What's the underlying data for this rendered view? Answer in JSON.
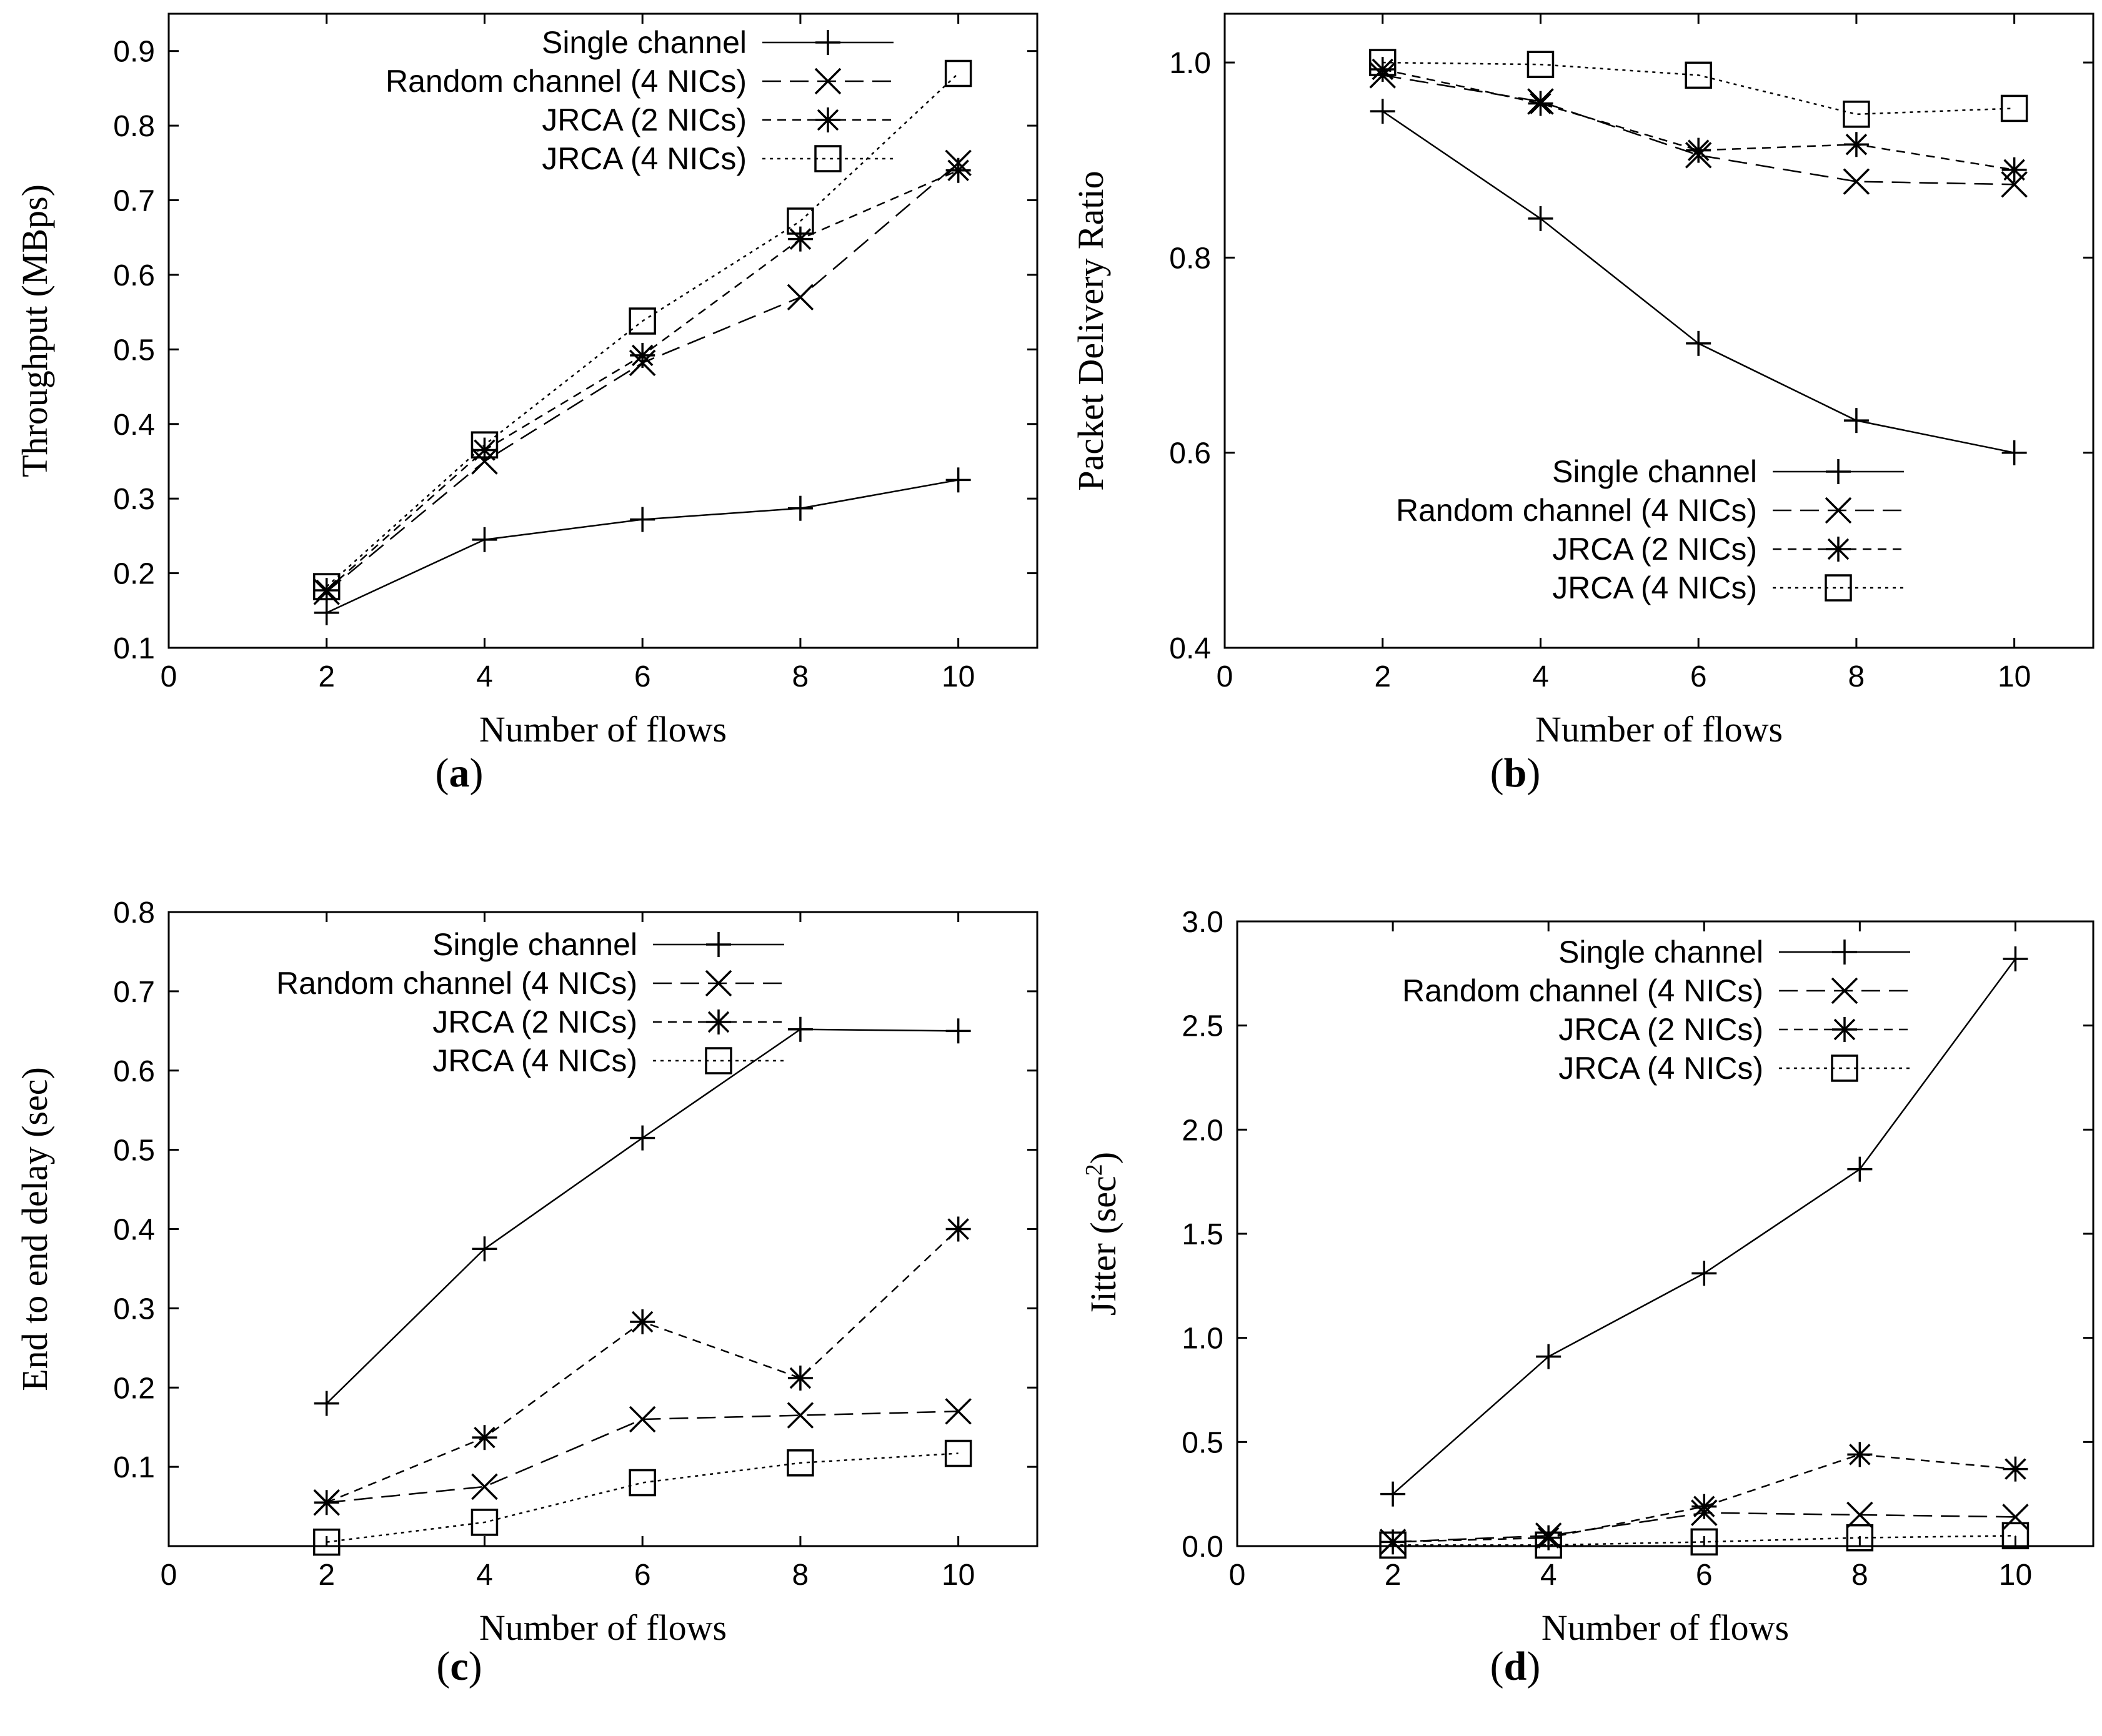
{
  "chart_data": [
    {
      "id": "a",
      "type": "line",
      "caption_letter": "a",
      "xlabel": "Number of flows",
      "ylabel": "Throughput (MBps)",
      "ylabel_sup": "",
      "ylabel_tail": "",
      "xlim": [
        0,
        11
      ],
      "ylim": [
        0.1,
        0.95
      ],
      "xticks": [
        0,
        2,
        4,
        6,
        8,
        10
      ],
      "yticks": [
        0.1,
        0.2,
        0.3,
        0.4,
        0.5,
        0.6,
        0.7,
        0.8,
        0.9
      ],
      "ytick_labels": [
        "0.1",
        "0.2",
        "0.3",
        "0.4",
        "0.5",
        "0.6",
        "0.7",
        "0.8",
        "0.9"
      ],
      "legend_position": "top-right",
      "x": [
        2,
        4,
        6,
        8,
        10
      ],
      "series": [
        {
          "name": "Single channel",
          "marker": "plus",
          "dash": "solid",
          "values": [
            0.147,
            0.245,
            0.272,
            0.287,
            0.325
          ]
        },
        {
          "name": "Random channel (4 NICs)",
          "marker": "cross",
          "dash": "dashed",
          "values": [
            0.175,
            0.35,
            0.482,
            0.57,
            0.75
          ]
        },
        {
          "name": "JRCA (2 NICs)",
          "marker": "star",
          "dash": "shortdash",
          "values": [
            0.177,
            0.365,
            0.492,
            0.648,
            0.74
          ]
        },
        {
          "name": "JRCA (4 NICs)",
          "marker": "square",
          "dash": "dotted",
          "values": [
            0.182,
            0.372,
            0.538,
            0.672,
            0.87
          ]
        }
      ]
    },
    {
      "id": "b",
      "type": "line",
      "caption_letter": "b",
      "xlabel": "Number of flows",
      "ylabel": "Packet Delivery Ratio",
      "ylabel_sup": "",
      "ylabel_tail": "",
      "xlim": [
        0,
        11
      ],
      "ylim": [
        0.4,
        1.05
      ],
      "xticks": [
        0,
        2,
        4,
        6,
        8,
        10
      ],
      "yticks": [
        0.4,
        0.6,
        0.8,
        1.0
      ],
      "ytick_labels": [
        "0.4",
        "0.6",
        "0.8",
        "1.0"
      ],
      "legend_position": "lower-right",
      "x": [
        2,
        4,
        6,
        8,
        10
      ],
      "series": [
        {
          "name": "Single channel",
          "marker": "plus",
          "dash": "solid",
          "values": [
            0.95,
            0.84,
            0.712,
            0.633,
            0.6
          ]
        },
        {
          "name": "Random channel (4 NICs)",
          "marker": "cross",
          "dash": "dashed",
          "values": [
            0.987,
            0.96,
            0.905,
            0.878,
            0.875
          ]
        },
        {
          "name": "JRCA (2 NICs)",
          "marker": "star",
          "dash": "shortdash",
          "values": [
            0.993,
            0.958,
            0.91,
            0.916,
            0.89
          ]
        },
        {
          "name": "JRCA (4 NICs)",
          "marker": "square",
          "dash": "dotted",
          "values": [
            1.0,
            0.998,
            0.987,
            0.947,
            0.953
          ]
        }
      ]
    },
    {
      "id": "c",
      "type": "line",
      "caption_letter": "c",
      "xlabel": "Number of flows",
      "ylabel": "End to end delay (sec)",
      "ylabel_sup": "",
      "ylabel_tail": "",
      "xlim": [
        0,
        11
      ],
      "ylim": [
        0.0,
        0.8
      ],
      "xticks": [
        0,
        2,
        4,
        6,
        8,
        10
      ],
      "yticks": [
        0.1,
        0.2,
        0.3,
        0.4,
        0.5,
        0.6,
        0.7,
        0.8
      ],
      "ytick_labels": [
        "0.1",
        "0.2",
        "0.3",
        "0.4",
        "0.5",
        "0.6",
        "0.7",
        "0.8"
      ],
      "legend_position": "top-right",
      "x": [
        2,
        4,
        6,
        8,
        10
      ],
      "series": [
        {
          "name": "Single channel",
          "marker": "plus",
          "dash": "solid",
          "values": [
            0.18,
            0.375,
            0.515,
            0.652,
            0.65
          ]
        },
        {
          "name": "Random channel (4 NICs)",
          "marker": "cross",
          "dash": "dashed",
          "values": [
            0.055,
            0.075,
            0.16,
            0.165,
            0.17
          ]
        },
        {
          "name": "JRCA (2 NICs)",
          "marker": "star",
          "dash": "shortdash",
          "values": [
            0.055,
            0.137,
            0.283,
            0.212,
            0.4
          ]
        },
        {
          "name": "JRCA (4 NICs)",
          "marker": "square",
          "dash": "dotted",
          "values": [
            0.005,
            0.03,
            0.08,
            0.105,
            0.117
          ]
        }
      ]
    },
    {
      "id": "d",
      "type": "line",
      "caption_letter": "d",
      "xlabel": "Number of flows",
      "ylabel": "Jitter (sec",
      "ylabel_sup": "2",
      "ylabel_tail": ")",
      "xlim": [
        0,
        11
      ],
      "ylim": [
        0.0,
        3.0
      ],
      "xticks": [
        0,
        2,
        4,
        6,
        8,
        10
      ],
      "yticks": [
        0.0,
        0.5,
        1.0,
        1.5,
        2.0,
        2.5,
        3.0
      ],
      "ytick_labels": [
        "0.0",
        "0.5",
        "1.0",
        "1.5",
        "2.0",
        "2.5",
        "3.0"
      ],
      "legend_position": "top-right",
      "x": [
        2,
        4,
        6,
        8,
        10
      ],
      "series": [
        {
          "name": "Single channel",
          "marker": "plus",
          "dash": "solid",
          "values": [
            0.25,
            0.91,
            1.31,
            1.81,
            2.82
          ]
        },
        {
          "name": "Random channel (4 NICs)",
          "marker": "cross",
          "dash": "dashed",
          "values": [
            0.02,
            0.05,
            0.16,
            0.15,
            0.14
          ]
        },
        {
          "name": "JRCA (2 NICs)",
          "marker": "star",
          "dash": "shortdash",
          "values": [
            0.02,
            0.04,
            0.19,
            0.44,
            0.37
          ]
        },
        {
          "name": "JRCA (4 NICs)",
          "marker": "square",
          "dash": "dotted",
          "values": [
            0.005,
            0.005,
            0.02,
            0.04,
            0.05
          ]
        }
      ]
    }
  ]
}
